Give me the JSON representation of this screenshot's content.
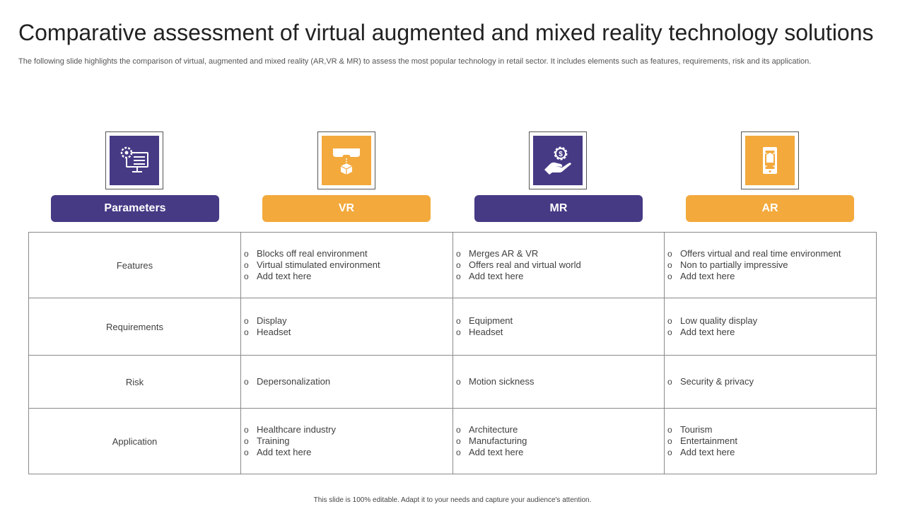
{
  "title": "Comparative assessment of virtual augmented and mixed reality technology solutions",
  "subtitle": "The following slide highlights the comparison of virtual, augmented and mixed reality (AR,VR & MR) to assess the most popular technology in retail sector. It includes elements such as features, requirements, risk and its application.",
  "bullet_char": "o",
  "colors": {
    "purple": "#463a85",
    "orange": "#f3a93c"
  },
  "columns": [
    {
      "label": "Parameters",
      "icon": "monitor-settings-icon",
      "color": "purple"
    },
    {
      "label": "VR",
      "icon": "vr-headset-icon",
      "color": "orange"
    },
    {
      "label": "MR",
      "icon": "hand-dollar-icon",
      "color": "purple"
    },
    {
      "label": "AR",
      "icon": "mobile-ar-icon",
      "color": "orange"
    }
  ],
  "rows": [
    {
      "parameter": "Features",
      "vr": [
        "Blocks off real environment",
        "Virtual stimulated environment",
        "Add text here"
      ],
      "mr": [
        "Merges AR & VR",
        "Offers  real and virtual world",
        "Add text here"
      ],
      "ar": [
        "Offers virtual  and real time environment",
        "Non to partially impressive",
        "Add text here"
      ]
    },
    {
      "parameter": "Requirements",
      "vr": [
        "Display",
        "Headset"
      ],
      "mr": [
        "Equipment",
        "Headset"
      ],
      "ar": [
        "Low quality display",
        "Add text here"
      ]
    },
    {
      "parameter": "Risk",
      "vr": [
        "Depersonalization"
      ],
      "mr": [
        "Motion sickness"
      ],
      "ar": [
        "Security & privacy"
      ]
    },
    {
      "parameter": "Application",
      "vr": [
        "Healthcare industry",
        "Training",
        "Add text here"
      ],
      "mr": [
        "Architecture",
        "Manufacturing",
        "Add text here"
      ],
      "ar": [
        "Tourism",
        "Entertainment",
        "Add text here"
      ]
    }
  ],
  "footer": "This slide is 100% editable. Adapt it to your needs and capture your audience's attention."
}
